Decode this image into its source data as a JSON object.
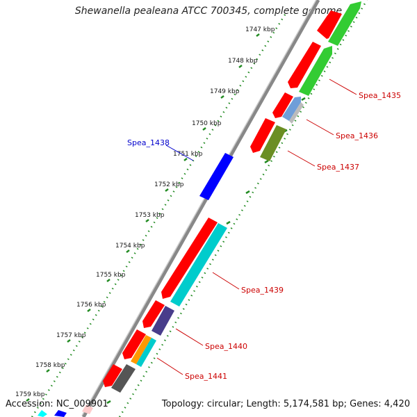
{
  "header": {
    "title": "Shewanella pealeana ATCC 700345, complete genome"
  },
  "footer": {
    "accession": "Accession: NC_009901",
    "summary": "Topology: circular; Length: 5,174,581 bp; Genes: 4,420"
  },
  "ticks": {
    "labels": [
      "1747 kbp",
      "1748 kbp",
      "1749 kbp",
      "1750 kbp",
      "1751 kbp",
      "1752 kbp",
      "1753 kbp",
      "1754 kbp",
      "1755 kbp",
      "1756 kbp",
      "1757 kbp",
      "1758 kbp",
      "1759 kbp"
    ]
  },
  "genes": {
    "labels": [
      "Spea_1435",
      "Spea_1436",
      "Spea_1437",
      "Spea_1438",
      "Spea_1439",
      "Spea_1440",
      "Spea_1441"
    ]
  },
  "colors": {
    "red": "#ff0000",
    "green": "#33cc33",
    "blue": "#0000ff",
    "cyan": "#00cccc",
    "olive": "#6b8e23",
    "steelblue": "#6f9ed8",
    "purple": "#483d8b",
    "orange": "#ff9900",
    "gray": "#555555",
    "backbone": "#888888",
    "tick": "#228b22",
    "label_red": "#cc0000",
    "label_blue": "#0000cc"
  }
}
